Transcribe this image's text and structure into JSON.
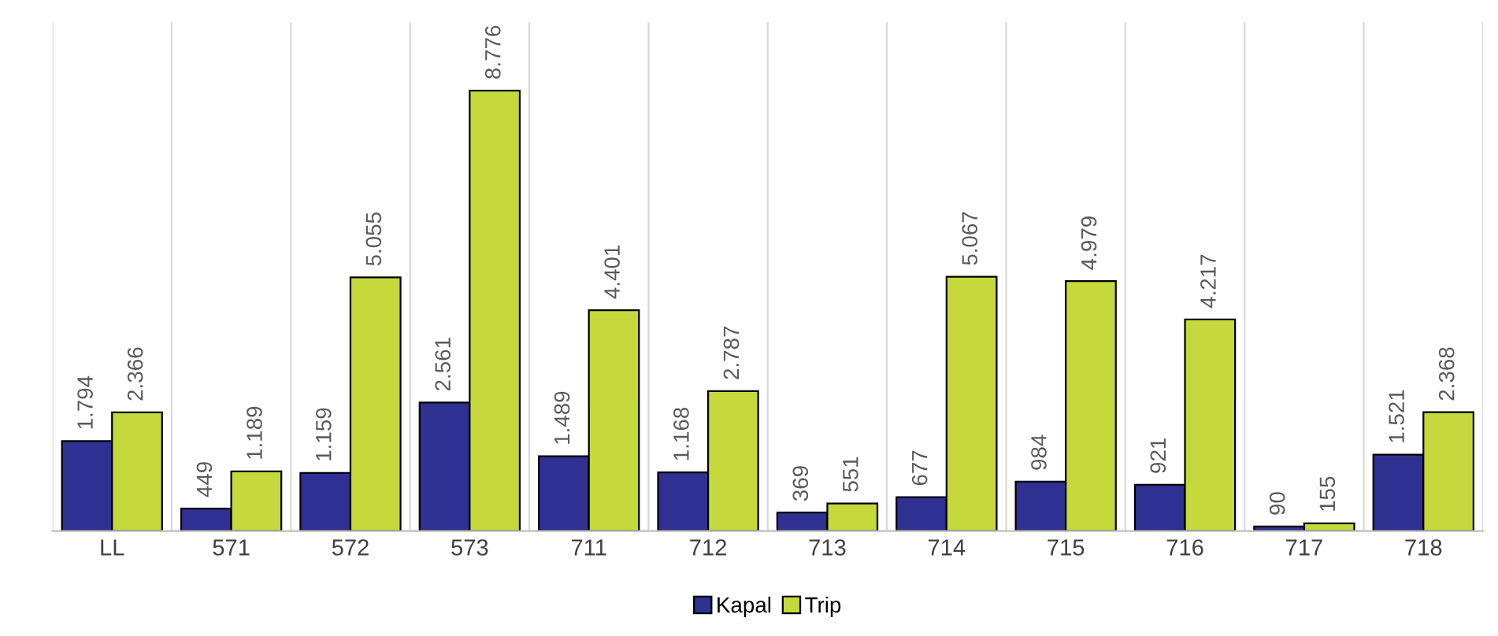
{
  "chart_data": {
    "type": "bar",
    "categories": [
      "LL",
      "571",
      "572",
      "573",
      "711",
      "712",
      "713",
      "714",
      "715",
      "716",
      "717",
      "718"
    ],
    "series": [
      {
        "name": "Kapal",
        "color": "#2e3192",
        "values": [
          1794,
          449,
          1159,
          2561,
          1489,
          1168,
          369,
          677,
          984,
          921,
          90,
          1521
        ],
        "value_labels": [
          "1.794",
          "449",
          "1.159",
          "2.561",
          "1.489",
          "1.168",
          "369",
          "677",
          "984",
          "921",
          "90",
          "1.521"
        ]
      },
      {
        "name": "Trip",
        "color": "#c5d93c",
        "values": [
          2366,
          1189,
          5055,
          8776,
          4401,
          2787,
          551,
          5067,
          4979,
          4217,
          155,
          2368
        ],
        "value_labels": [
          "2.366",
          "1.189",
          "5.055",
          "8.776",
          "4.401",
          "2.787",
          "551",
          "5.067",
          "4.979",
          "4.217",
          "155",
          "2.368"
        ]
      }
    ],
    "grid": "x",
    "legend": "bottom",
    "tick_labels": "x"
  }
}
